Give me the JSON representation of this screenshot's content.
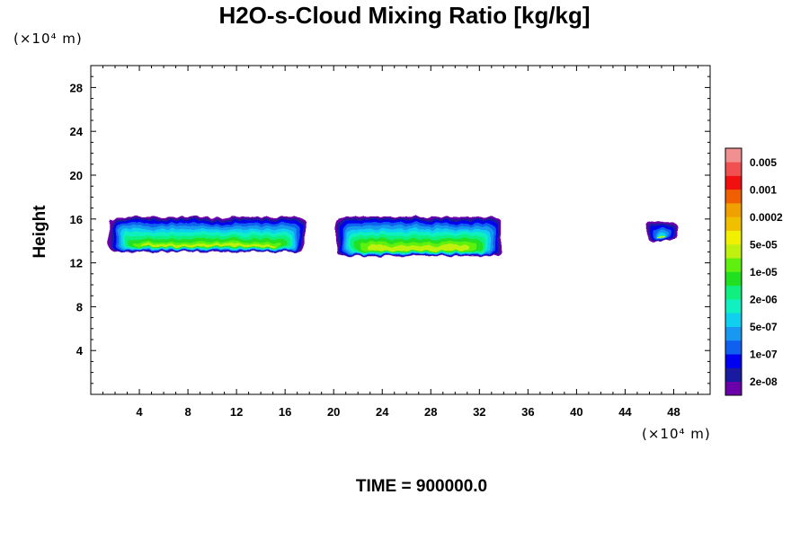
{
  "chart_data": {
    "type": "heatmap",
    "title": "H2O-s-Cloud Mixing Ratio [kg/kg]",
    "xlabel": "",
    "ylabel": "Height",
    "x_unit": "(×10⁴ m)",
    "y_unit": "(×10⁴ m)",
    "xlim": [
      0,
      51
    ],
    "ylim": [
      0,
      30
    ],
    "x_ticks": [
      4,
      8,
      12,
      16,
      20,
      24,
      28,
      32,
      36,
      40,
      44,
      48
    ],
    "y_ticks": [
      4,
      8,
      12,
      16,
      20,
      24,
      28
    ],
    "colorbar": {
      "labels": [
        "0.005",
        "0.001",
        "0.0002",
        "5e-05",
        "1e-05",
        "2e-06",
        "5e-07",
        "1e-07",
        "2e-08"
      ],
      "colors": [
        "#6a00aa",
        "#1a1aa0",
        "#0000f0",
        "#1060f0",
        "#1898f0",
        "#10d0f0",
        "#10f0c0",
        "#10f080",
        "#20e020",
        "#60f010",
        "#c0f010",
        "#f0f000",
        "#f0c000",
        "#f0a000",
        "#f06000",
        "#f01010",
        "#f05050",
        "#f09090"
      ]
    },
    "clouds": [
      {
        "x_start": 1.5,
        "x_end": 17.7,
        "base": 13.0,
        "top": 16.2
      },
      {
        "x_start": 20.2,
        "x_end": 33.8,
        "base": 12.6,
        "top": 16.2
      },
      {
        "x_start": 45.8,
        "x_end": 48.3,
        "base": 13.9,
        "top": 15.8
      }
    ],
    "footer": "TIME = 900000.0"
  }
}
